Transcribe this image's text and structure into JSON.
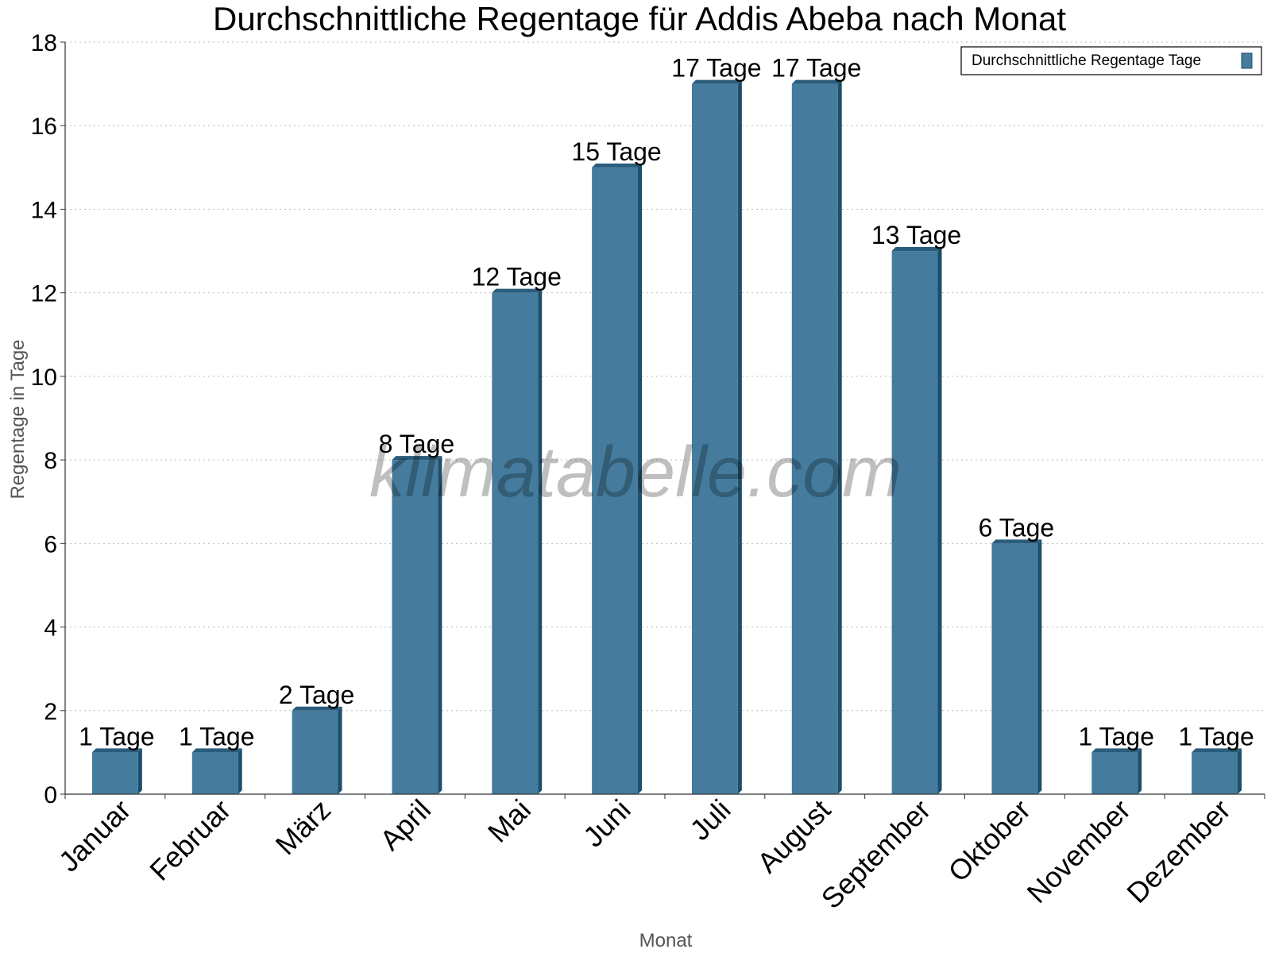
{
  "chart_data": {
    "type": "bar",
    "title": "Durchschnittliche Regentage für Addis Abeba nach Monat",
    "xlabel": "Monat",
    "ylabel": "Regentage in Tage",
    "categories": [
      "Januar",
      "Februar",
      "März",
      "April",
      "Mai",
      "Juni",
      "Juli",
      "August",
      "September",
      "Oktober",
      "November",
      "Dezember"
    ],
    "series": [
      {
        "name": "Durchschnittliche Regentage Tage",
        "values": [
          1,
          1,
          2,
          8,
          12,
          15,
          17,
          17,
          13,
          6,
          1,
          1
        ],
        "labels": [
          "1 Tage",
          "1 Tage",
          "2 Tage",
          "8 Tage",
          "12 Tage",
          "15 Tage",
          "17 Tage",
          "17 Tage",
          "13 Tage",
          "6 Tage",
          "1 Tage",
          "1 Tage"
        ]
      }
    ],
    "ylim": [
      0,
      18
    ],
    "yticks": [
      0,
      2,
      4,
      6,
      8,
      10,
      12,
      14,
      16,
      18
    ],
    "grid": true,
    "legend_position": "top-right",
    "colors": {
      "bar_face": "#457b9d",
      "bar_side": "#1d4e6b",
      "bar_top": "#2a5d7c",
      "grid": "#bbbbbb",
      "axis": "#333333",
      "axis_title": "#555555"
    }
  },
  "watermark": "klimatabelle.com"
}
